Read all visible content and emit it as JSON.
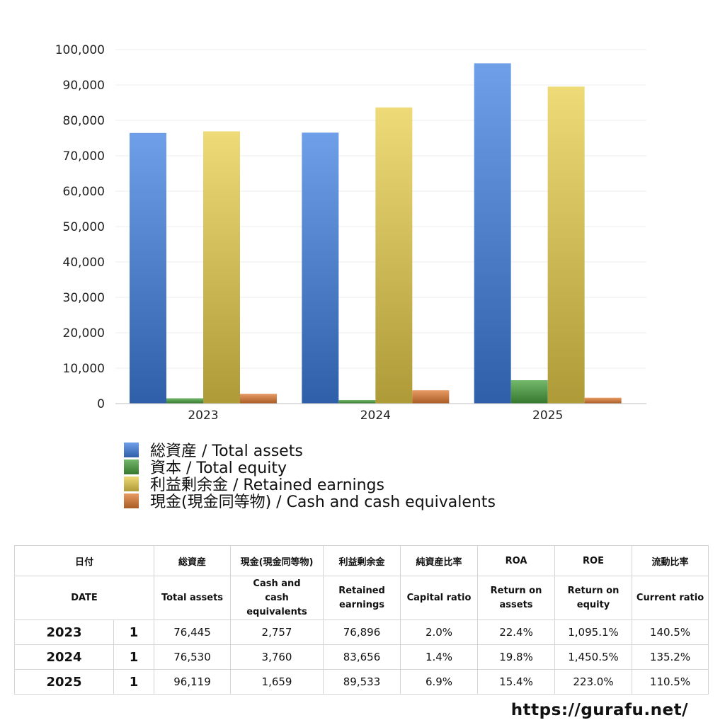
{
  "chart_data": {
    "type": "bar",
    "categories": [
      "2023",
      "2024",
      "2025"
    ],
    "series": [
      {
        "name": "総資産 / Total assets",
        "values": [
          76445,
          76530,
          96119
        ],
        "color": "#3f7fe0"
      },
      {
        "name": "資本 / Total equity",
        "values": [
          1500,
          1000,
          6600
        ],
        "color": "#46a03c"
      },
      {
        "name": "利益剰余金 / Retained earnings",
        "values": [
          76896,
          83656,
          89533
        ],
        "color": "#e8cf4a"
      },
      {
        "name": "現金(現金同等物) / Cash and cash equivalents",
        "values": [
          2757,
          3760,
          1659
        ],
        "color": "#e07a30"
      }
    ],
    "ylim": [
      0,
      100000
    ],
    "yticks": [
      "0",
      "10,000",
      "20,000",
      "30,000",
      "40,000",
      "50,000",
      "60,000",
      "70,000",
      "80,000",
      "90,000",
      "100,000"
    ],
    "grid": true,
    "legend_position": "bottom-left"
  },
  "table": {
    "headers_jp": [
      "日付",
      "総資産",
      "現金(現金同等物)",
      "利益剰余金",
      "純資産比率",
      "ROA",
      "ROE",
      "流動比率"
    ],
    "headers_en": [
      "DATE",
      "Total assets",
      "Cash and cash equivalents",
      "Retained earnings",
      "Capital ratio",
      "Return on assets",
      "Return on equity",
      "Current ratio"
    ],
    "rows": [
      {
        "year": "2023",
        "count": "1",
        "total_assets": "76,445",
        "cash": "2,757",
        "retained": "76,896",
        "capital_ratio": "2.0%",
        "roa": "22.4%",
        "roe": "1,095.1%",
        "current_ratio": "140.5%"
      },
      {
        "year": "2024",
        "count": "1",
        "total_assets": "76,530",
        "cash": "3,760",
        "retained": "83,656",
        "capital_ratio": "1.4%",
        "roa": "19.8%",
        "roe": "1,450.5%",
        "current_ratio": "135.2%"
      },
      {
        "year": "2025",
        "count": "1",
        "total_assets": "96,119",
        "cash": "1,659",
        "retained": "89,533",
        "capital_ratio": "6.9%",
        "roa": "15.4%",
        "roe": "223.0%",
        "current_ratio": "110.5%"
      }
    ]
  },
  "footer": {
    "url": "https://gurafu.net/"
  }
}
